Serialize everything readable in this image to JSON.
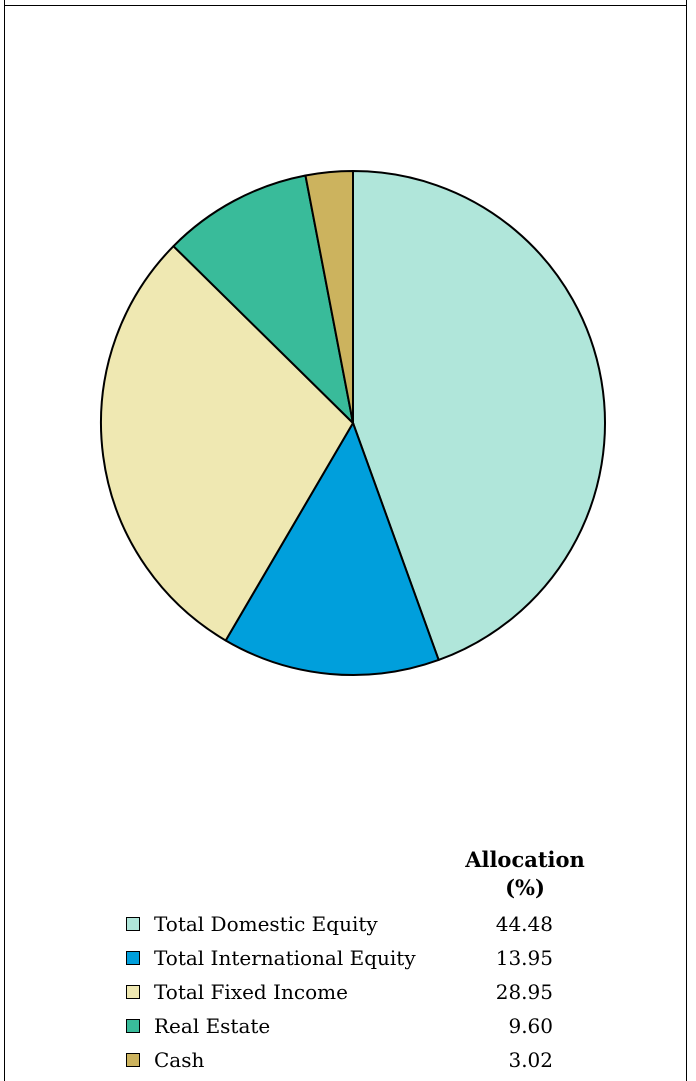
{
  "chart_data": {
    "type": "pie",
    "title": "",
    "start_angle_deg": 0,
    "direction": "clockwise",
    "value_column_header_line1": "Allocation",
    "value_column_header_line2": "(%)",
    "slices": [
      {
        "label": "Total Domestic Equity",
        "value": 44.48,
        "display": "44.48",
        "color": "#b0e6da"
      },
      {
        "label": "Total International Equity",
        "value": 13.95,
        "display": "13.95",
        "color": "#009fdc"
      },
      {
        "label": "Total Fixed Income",
        "value": 28.95,
        "display": "28.95",
        "color": "#efe8b2"
      },
      {
        "label": "Real Estate",
        "value": 9.6,
        "display": "9.60",
        "color": "#39bb9a"
      },
      {
        "label": "Cash",
        "value": 3.02,
        "display": "3.02",
        "color": "#ccb35e"
      }
    ]
  }
}
